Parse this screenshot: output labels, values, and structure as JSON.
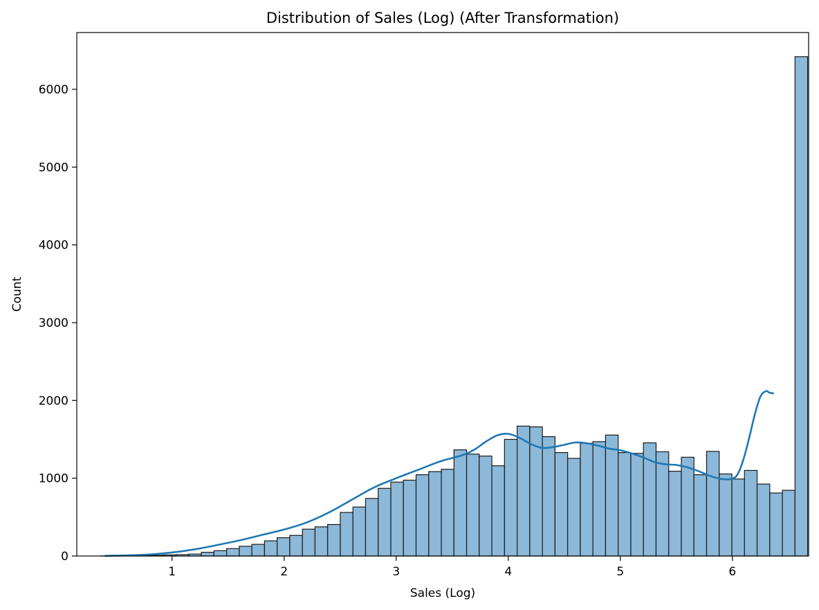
{
  "chart_data": {
    "type": "bar",
    "title": "Distribution of Sales (Log) (After Transformation)",
    "xlabel": "Sales (Log)",
    "ylabel": "Count",
    "xlim": [
      0.15,
      6.68
    ],
    "ylim": [
      0,
      6730
    ],
    "xticks": [
      1,
      2,
      3,
      4,
      5,
      6
    ],
    "yticks": [
      0,
      1000,
      2000,
      3000,
      4000,
      5000,
      6000
    ],
    "xtick_labels": [
      "1",
      "2",
      "3",
      "4",
      "5",
      "6"
    ],
    "ytick_labels": [
      "0",
      "1000",
      "2000",
      "3000",
      "4000",
      "5000",
      "6000"
    ],
    "grid": false,
    "bar_color": "#8cb8d9",
    "bar_edge_color": "#1a1a1a",
    "kde_color": "#1f77b4",
    "bins": {
      "start": 0.36,
      "width": 0.1127,
      "counts": [
        1,
        2,
        4,
        6,
        10,
        14,
        18,
        25,
        48,
        68,
        95,
        125,
        150,
        195,
        235,
        265,
        345,
        375,
        405,
        560,
        630,
        740,
        870,
        950,
        975,
        1045,
        1085,
        1115,
        1365,
        1310,
        1285,
        1160,
        1500,
        1670,
        1660,
        1535,
        1330,
        1255,
        1450,
        1470,
        1555,
        1330,
        1320,
        1455,
        1340,
        1090,
        1270,
        1045,
        1345,
        1055,
        990,
        1100,
        925,
        810,
        845,
        6420
      ]
    },
    "kde": {
      "x": [
        0.4,
        0.6,
        0.8,
        1.0,
        1.2,
        1.4,
        1.6,
        1.8,
        2.0,
        2.2,
        2.4,
        2.6,
        2.8,
        3.0,
        3.2,
        3.4,
        3.6,
        3.7,
        3.8,
        3.9,
        4.0,
        4.1,
        4.2,
        4.3,
        4.4,
        4.5,
        4.6,
        4.7,
        4.8,
        4.9,
        5.0,
        5.1,
        5.2,
        5.3,
        5.4,
        5.5,
        5.6,
        5.7,
        5.8,
        5.9,
        6.0,
        6.05,
        6.1,
        6.15,
        6.2,
        6.25,
        6.3,
        6.33,
        6.37
      ],
      "y": [
        2,
        8,
        20,
        45,
        85,
        140,
        200,
        270,
        340,
        430,
        560,
        720,
        880,
        1000,
        1110,
        1220,
        1300,
        1370,
        1470,
        1550,
        1570,
        1520,
        1440,
        1390,
        1400,
        1430,
        1460,
        1450,
        1420,
        1380,
        1360,
        1320,
        1270,
        1210,
        1180,
        1170,
        1140,
        1090,
        1030,
        990,
        995,
        1060,
        1250,
        1520,
        1820,
        2050,
        2120,
        2100,
        2090
      ]
    }
  }
}
